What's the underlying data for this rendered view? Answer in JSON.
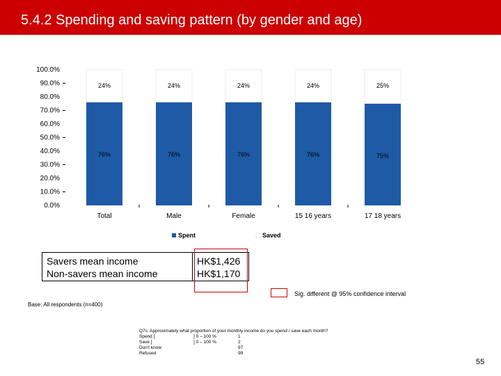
{
  "header": {
    "title": "5.4.2 Spending and saving pattern (by gender and age)",
    "background_color": "#cc0000"
  },
  "chart_data": {
    "type": "bar",
    "stacked": true,
    "categories": [
      "Total",
      "Male",
      "Female",
      "15  16 years",
      "17  18 years"
    ],
    "series": [
      {
        "name": "Spent",
        "values": [
          76,
          76,
          76,
          76,
          75
        ],
        "labels": [
          "76%",
          "76%",
          "76%",
          "76%",
          "75%"
        ],
        "color": "#1f5aa6"
      },
      {
        "name": "Saved",
        "values": [
          24,
          24,
          24,
          24,
          25
        ],
        "labels": [
          "24%",
          "24%",
          "24%",
          "24%",
          "25%"
        ],
        "color": "#ffffff"
      }
    ],
    "y_ticks": [
      "0.0%",
      "10.0%",
      "20.0%",
      "30.0%",
      "40.0%",
      "50.0%",
      "60.0%",
      "70.0%",
      "80.0%",
      "90.0%",
      "100.0%"
    ],
    "ylim": [
      0,
      100
    ],
    "grid": false,
    "legend_position": "bottom"
  },
  "income_box": {
    "savers_label": "Savers mean income",
    "savers_value": "HK$1,426",
    "nonsavers_label": "Non-savers mean income",
    "nonsavers_value": "HK$1,170"
  },
  "sig_note": "Sig. different @ 95% confidence interval",
  "base_note": "Base: All respondents (n=400)",
  "question": {
    "text": "Q7c. Approximately what proportion of your monthly income do you spend / save each month?",
    "options": [
      {
        "label": "Spend  [",
        "range": "] 0 – 100 %",
        "code": "1"
      },
      {
        "label": "Save  [",
        "range": "] 0 – 100 %",
        "code": "2"
      },
      {
        "label": "Don't know",
        "range": "",
        "code": "97"
      },
      {
        "label": "Refused",
        "range": "",
        "code": "99"
      }
    ]
  },
  "page_number": "55"
}
